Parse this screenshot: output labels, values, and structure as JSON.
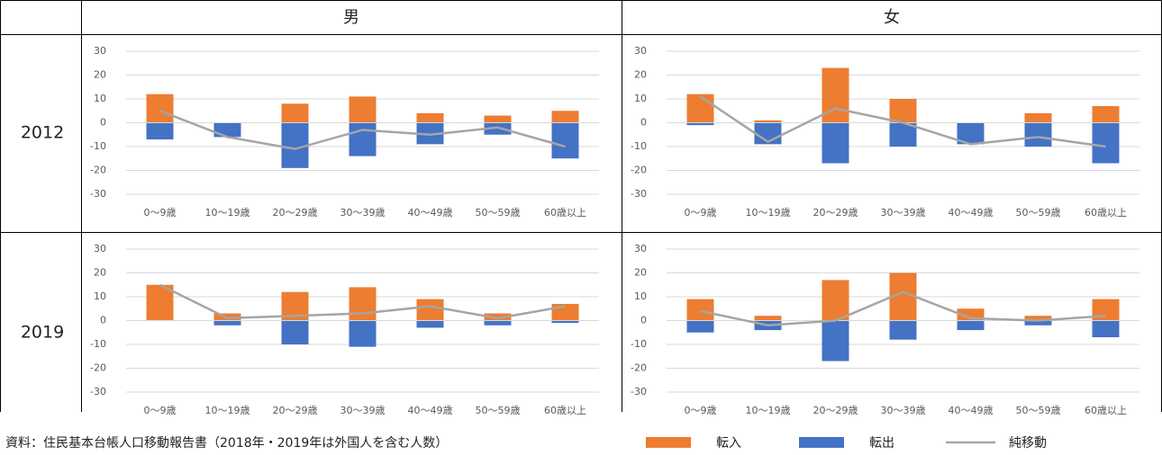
{
  "header": {
    "columns": [
      "男",
      "女"
    ]
  },
  "rows": [
    "2012",
    "2019"
  ],
  "source": "資料：住民基本台帳人口移動報告書（2018年・2019年は外国人を含む人数）",
  "chart_data": [
    {
      "type": "bar",
      "categories": [
        "0〜9歳",
        "10〜19歳",
        "20〜29歳",
        "30〜39歳",
        "40〜49歳",
        "50〜59歳",
        "60歳以上"
      ],
      "ylim": [
        -30,
        30
      ],
      "yticks": [
        -30,
        -20,
        -10,
        0,
        10,
        20,
        30
      ],
      "grid": true,
      "series": [
        {
          "name": "転入",
          "type": "bar",
          "color": "#ed7d31",
          "values": [
            12,
            0,
            8,
            11,
            4,
            3,
            5
          ]
        },
        {
          "name": "転出",
          "type": "bar",
          "color": "#4472c4",
          "values": [
            -7,
            -6,
            -19,
            -14,
            -9,
            -5,
            -15
          ]
        },
        {
          "name": "純移動",
          "type": "line",
          "color": "#a5a5a5",
          "values": [
            5,
            -6,
            -11,
            -3,
            -5,
            -2,
            -10
          ]
        }
      ]
    },
    {
      "type": "bar",
      "categories": [
        "0〜9歳",
        "10〜19歳",
        "20〜29歳",
        "30〜39歳",
        "40〜49歳",
        "50〜59歳",
        "60歳以上"
      ],
      "ylim": [
        -30,
        30
      ],
      "yticks": [
        -30,
        -20,
        -10,
        0,
        10,
        20,
        30
      ],
      "grid": true,
      "series": [
        {
          "type": "bar",
          "color": "#ed7d31",
          "values": [
            12,
            1,
            23,
            10,
            0,
            4,
            7
          ]
        },
        {
          "type": "bar",
          "color": "#4472c4",
          "values": [
            -1,
            -9,
            -17,
            -10,
            -9,
            -10,
            -17
          ]
        },
        {
          "type": "line",
          "color": "#a5a5a5",
          "values": [
            11,
            -8,
            6,
            0,
            -9,
            -6,
            -10
          ]
        }
      ]
    },
    {
      "type": "bar",
      "categories": [
        "0〜9歳",
        "10〜19歳",
        "20〜29歳",
        "30〜39歳",
        "40〜49歳",
        "50〜59歳",
        "60歳以上"
      ],
      "ylim": [
        -30,
        30
      ],
      "yticks": [
        -30,
        -20,
        -10,
        0,
        10,
        20,
        30
      ],
      "grid": true,
      "series": [
        {
          "type": "bar",
          "color": "#ed7d31",
          "values": [
            15,
            3,
            12,
            14,
            9,
            3,
            7
          ]
        },
        {
          "type": "bar",
          "color": "#4472c4",
          "values": [
            0,
            -2,
            -10,
            -11,
            -3,
            -2,
            -1
          ]
        },
        {
          "type": "line",
          "color": "#a5a5a5",
          "values": [
            15,
            1,
            2,
            3,
            6,
            1,
            6
          ]
        }
      ]
    },
    {
      "type": "bar",
      "categories": [
        "0〜9歳",
        "10〜19歳",
        "20〜29歳",
        "30〜39歳",
        "40〜49歳",
        "50〜59歳",
        "60歳以上"
      ],
      "ylim": [
        -30,
        30
      ],
      "yticks": [
        -30,
        -20,
        -10,
        0,
        10,
        20,
        30
      ],
      "grid": true,
      "series": [
        {
          "type": "bar",
          "color": "#ed7d31",
          "values": [
            9,
            2,
            17,
            20,
            5,
            2,
            9
          ]
        },
        {
          "type": "bar",
          "color": "#4472c4",
          "values": [
            -5,
            -4,
            -17,
            -8,
            -4,
            -2,
            -7
          ]
        },
        {
          "type": "line",
          "color": "#a5a5a5",
          "values": [
            4,
            -2,
            0,
            12,
            1,
            0,
            2
          ]
        }
      ]
    }
  ]
}
